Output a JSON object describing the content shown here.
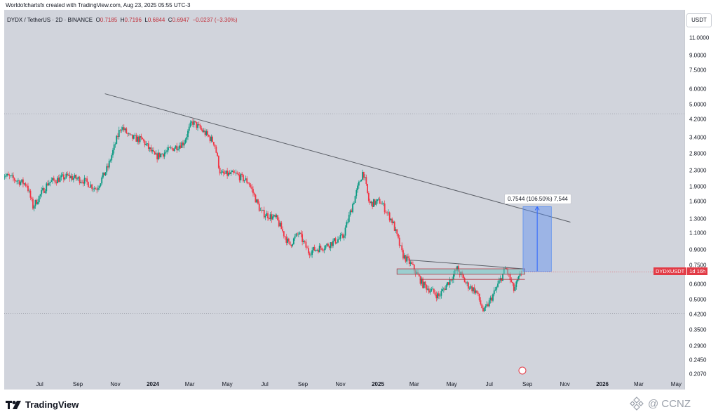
{
  "header": {
    "attribution": "Worldofchartsfx created with TradingView.com, Aug 23, 2025 05:55 UTC-3"
  },
  "ohlc": {
    "symbol_line": "DYDX / TetherUS · 2D · BINANCE",
    "o_label": "O",
    "o": "0.7185",
    "h_label": "H",
    "h": "0.7196",
    "l_label": "L",
    "l": "0.6844",
    "c_label": "C",
    "c": "0.6947",
    "change": "−0.0237 (−3.30%)"
  },
  "currency_button": "USDT",
  "last_price_tag": {
    "symbol": "DYDXUSDT",
    "countdown": "1d 16h",
    "color": "#e23b46"
  },
  "measure_label": "0.7544 (106.50%) 7,544",
  "logo_text": "TradingView",
  "watermark_text": "@ CCNZ",
  "colors": {
    "up": "#089981",
    "down": "#f23645",
    "trendline": "#5a5e66",
    "measure": "#5b8ff0",
    "zone": "#6fc9c4"
  },
  "chart_data": {
    "type": "candlestick",
    "scale": "log",
    "y_ticks": [
      "11.0000",
      "9.0000",
      "7.5000",
      "6.0000",
      "5.0000",
      "4.2000",
      "3.4000",
      "2.8000",
      "2.3000",
      "1.9000",
      "1.6000",
      "1.3000",
      "1.1000",
      "0.9000",
      "0.7500",
      "0.6000",
      "0.5000",
      "0.4200",
      "0.3500",
      "0.2900",
      "0.2450",
      "0.2070"
    ],
    "x_ticks": [
      {
        "label": "Jul",
        "bold": false
      },
      {
        "label": "Sep",
        "bold": false
      },
      {
        "label": "Nov",
        "bold": false
      },
      {
        "label": "2024",
        "bold": true
      },
      {
        "label": "Mar",
        "bold": false
      },
      {
        "label": "May",
        "bold": false
      },
      {
        "label": "Jul",
        "bold": false
      },
      {
        "label": "Sep",
        "bold": false
      },
      {
        "label": "Nov",
        "bold": false
      },
      {
        "label": "2025",
        "bold": true
      },
      {
        "label": "Mar",
        "bold": false
      },
      {
        "label": "May",
        "bold": false
      },
      {
        "label": "Jul",
        "bold": false
      },
      {
        "label": "Sep",
        "bold": false
      },
      {
        "label": "Nov",
        "bold": false
      },
      {
        "label": "2026",
        "bold": true
      },
      {
        "label": "Mar",
        "bold": false
      },
      {
        "label": "May",
        "bold": false
      }
    ],
    "price_path": [
      {
        "t": "2023-05-01",
        "p": 2.2
      },
      {
        "t": "2023-06-10",
        "p": 1.95
      },
      {
        "t": "2023-06-20",
        "p": 1.5
      },
      {
        "t": "2023-07-15",
        "p": 2.0
      },
      {
        "t": "2023-08-15",
        "p": 2.15
      },
      {
        "t": "2023-09-10",
        "p": 2.05
      },
      {
        "t": "2023-10-01",
        "p": 1.85
      },
      {
        "t": "2023-10-20",
        "p": 2.4
      },
      {
        "t": "2023-11-10",
        "p": 3.9
      },
      {
        "t": "2023-11-25",
        "p": 3.4
      },
      {
        "t": "2023-12-15",
        "p": 3.3
      },
      {
        "t": "2024-01-05",
        "p": 2.7
      },
      {
        "t": "2024-01-25",
        "p": 2.9
      },
      {
        "t": "2024-02-20",
        "p": 3.2
      },
      {
        "t": "2024-03-05",
        "p": 4.1
      },
      {
        "t": "2024-03-25",
        "p": 3.6
      },
      {
        "t": "2024-04-10",
        "p": 3.2
      },
      {
        "t": "2024-04-20",
        "p": 2.2
      },
      {
        "t": "2024-05-15",
        "p": 2.2
      },
      {
        "t": "2024-06-05",
        "p": 2.0
      },
      {
        "t": "2024-06-25",
        "p": 1.4
      },
      {
        "t": "2024-07-20",
        "p": 1.3
      },
      {
        "t": "2024-08-10",
        "p": 0.95
      },
      {
        "t": "2024-08-25",
        "p": 1.1
      },
      {
        "t": "2024-09-10",
        "p": 0.88
      },
      {
        "t": "2024-10-10",
        "p": 0.95
      },
      {
        "t": "2024-11-05",
        "p": 1.05
      },
      {
        "t": "2024-11-25",
        "p": 1.7
      },
      {
        "t": "2024-12-08",
        "p": 2.3
      },
      {
        "t": "2024-12-18",
        "p": 1.55
      },
      {
        "t": "2025-01-05",
        "p": 1.6
      },
      {
        "t": "2025-01-25",
        "p": 1.25
      },
      {
        "t": "2025-02-10",
        "p": 0.85
      },
      {
        "t": "2025-02-25",
        "p": 0.75
      },
      {
        "t": "2025-03-15",
        "p": 0.6
      },
      {
        "t": "2025-04-10",
        "p": 0.52
      },
      {
        "t": "2025-05-10",
        "p": 0.72
      },
      {
        "t": "2025-05-25",
        "p": 0.6
      },
      {
        "t": "2025-06-10",
        "p": 0.55
      },
      {
        "t": "2025-06-22",
        "p": 0.43
      },
      {
        "t": "2025-07-10",
        "p": 0.55
      },
      {
        "t": "2025-07-28",
        "p": 0.73
      },
      {
        "t": "2025-08-10",
        "p": 0.56
      },
      {
        "t": "2025-08-23",
        "p": 0.6947
      }
    ],
    "trendline": [
      {
        "t": "2023-10-15",
        "p": 5.7
      },
      {
        "t": "2025-11-10",
        "p": 1.25
      }
    ],
    "resistance_line": [
      {
        "t": "2025-02-20",
        "p": 0.8
      },
      {
        "t": "2025-08-25",
        "p": 0.72
      }
    ],
    "support_line": [
      {
        "t": "2025-03-10",
        "p": 0.635
      },
      {
        "t": "2025-08-28",
        "p": 0.635
      }
    ],
    "zone": {
      "t0": "2025-02-01",
      "t1": "2025-08-28",
      "p_low": 0.675,
      "p_high": 0.72
    },
    "hlines": [
      4.5,
      0.425
    ],
    "measure": {
      "t0": "2025-08-25",
      "t1": "2025-10-10",
      "p_low": 0.7,
      "p_high": 1.5,
      "change": 0.7544,
      "percent": 106.5,
      "ticks": 7544
    },
    "last_price": 0.6947
  }
}
